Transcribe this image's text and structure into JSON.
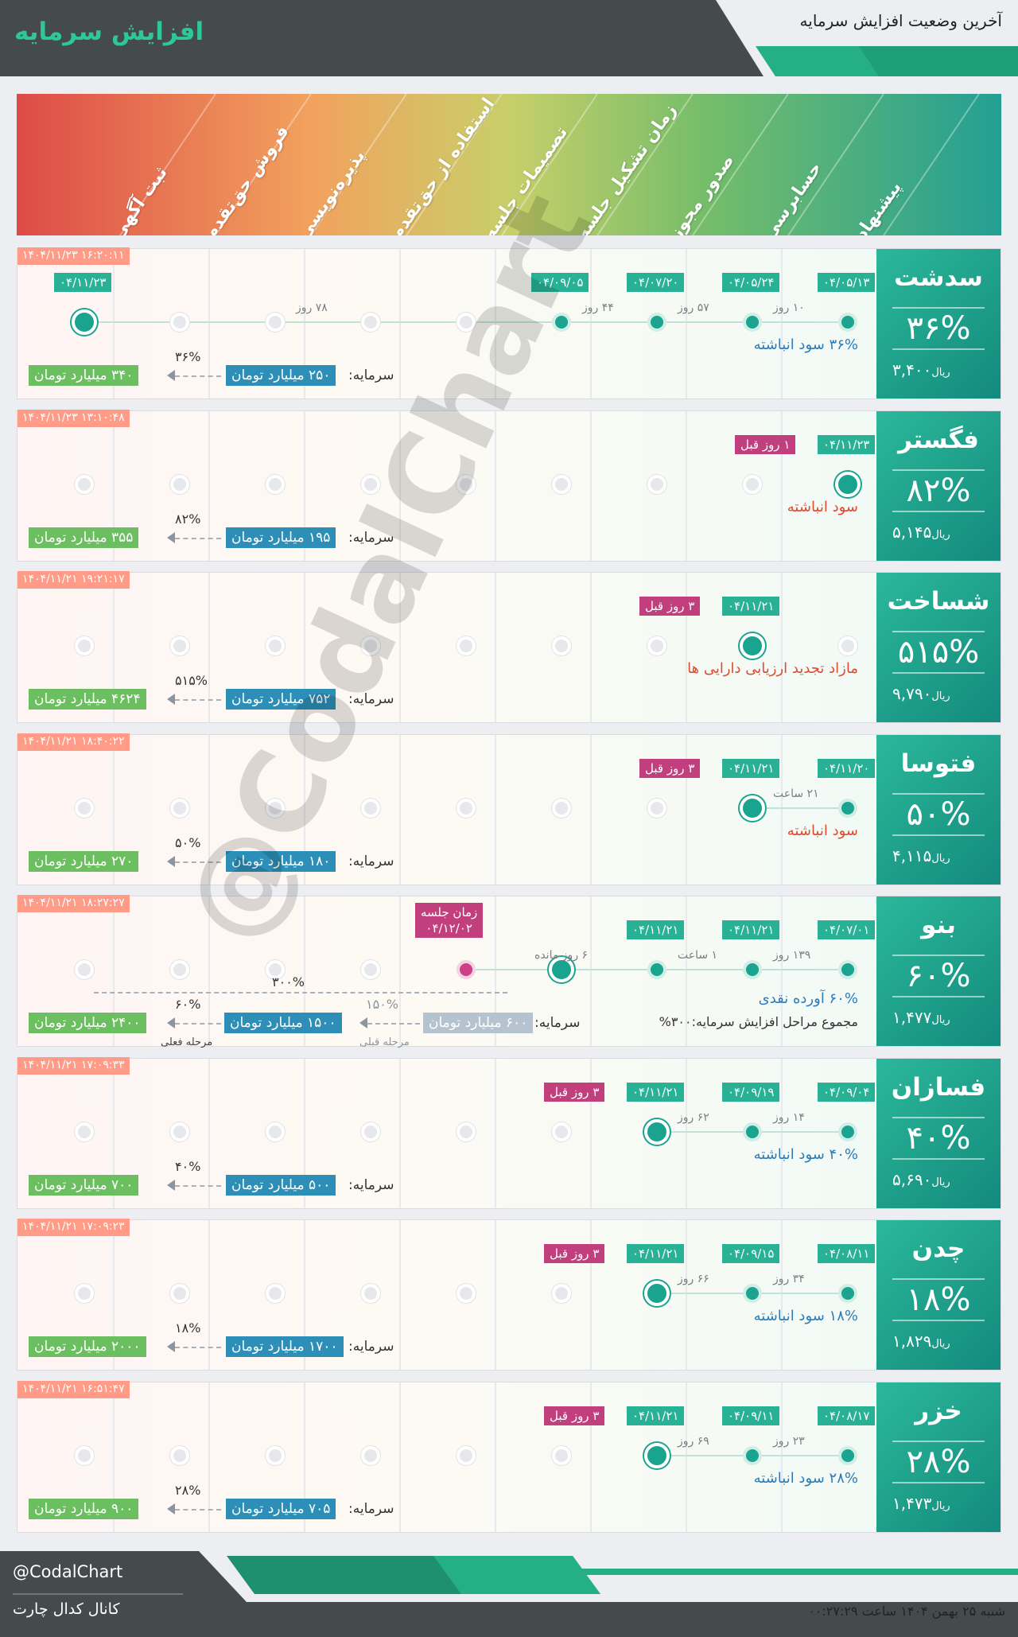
{
  "header": {
    "title": "افزایش سرمایه",
    "subtitle": "آخرین وضعیت افزایش سرمایه"
  },
  "stages": [
    "پیشنهاد",
    "حسابرسی",
    "صدور مجوز",
    "زمان تشکیل جلسه",
    "تصمیمات جلسه",
    "استفاده از حق‌تقدم",
    "پذیره‌نویسی",
    "فروش حق‌تقدم",
    "ثبت آگهی"
  ],
  "capital_label": "سرمایه:",
  "rial": "ریال",
  "watermark": "@CodalChart",
  "cards": [
    {
      "symbol": "سدشت",
      "percent": "۳۶%",
      "price": "۳,۴۰۰",
      "timestamp": "۱۴۰۴/۱۱/۲۳ ۱۶:۲۰:۱۱",
      "desc": "۳۶% سود انباشته",
      "from": "۲۵۰ میلیارد تومان",
      "to": "۳۴۰ میلیارد تومان",
      "ratio": "۳۶%",
      "dates": [
        "۰۴/۰۵/۱۳",
        "۰۴/۰۵/۲۴",
        "۰۴/۰۷/۲۰",
        "۰۴/۰۹/۰۵",
        "۰۴/۱۱/۲۳"
      ],
      "gaps": [
        "۱۰ روز",
        "۵۷ روز",
        "۴۴ روز",
        "۷۸ روز"
      ]
    },
    {
      "symbol": "فگستر",
      "percent": "۸۲%",
      "price": "۵,۱۴۵",
      "timestamp": "۱۴۰۴/۱۱/۲۳ ۱۳:۱۰:۴۸",
      "desc": "سود انباشته",
      "from": "۱۹۵ میلیارد تومان",
      "to": "۳۵۵ میلیارد تومان",
      "ratio": "۸۲%",
      "dates": [
        "۰۴/۱۱/۲۳"
      ],
      "ago": "۱ روز قبل"
    },
    {
      "symbol": "شساخت",
      "percent": "۵۱۵%",
      "price": "۹,۷۹۰",
      "timestamp": "۱۴۰۴/۱۱/۲۱ ۱۹:۲۱:۱۷",
      "desc": "مازاد تجدید ارزیابی دارایی ها",
      "from": "۷۵۲ میلیارد تومان",
      "to": "۴۶۲۴ میلیارد تومان",
      "ratio": "۵۱۵%",
      "dates": [
        "۰۴/۱۱/۲۱"
      ],
      "ago": "۳ روز قبل"
    },
    {
      "symbol": "فتوسا",
      "percent": "۵۰%",
      "price": "۴,۱۱۵",
      "timestamp": "۱۴۰۴/۱۱/۲۱ ۱۸:۴۰:۲۲",
      "desc": "سود انباشته",
      "from": "۱۸۰ میلیارد تومان",
      "to": "۲۷۰ میلیارد تومان",
      "ratio": "۵۰%",
      "dates": [
        "۰۴/۱۱/۲۰",
        "۰۴/۱۱/۲۱"
      ],
      "gaps": [
        "۲۱ ساعت"
      ],
      "ago": "۳ روز قبل"
    },
    {
      "symbol": "بنو",
      "percent": "۶۰%",
      "price": "۱,۴۷۷",
      "timestamp": "۱۴۰۴/۱۱/۲۱ ۱۸:۲۷:۲۷",
      "desc": "۶۰% آورده نقدی",
      "desc2": "مجموع مراحل افزایش سرمایه:۳۰۰%",
      "from_prev": "۶۰۰ میلیارد تومان",
      "from": "۱۵۰۰ میلیارد تومان",
      "to": "۲۴۰۰ میلیارد تومان",
      "ratio_prev": "۱۵۰%",
      "ratio": "۶۰%",
      "ratio_total": "۳۰۰%",
      "prev_stage": "مرحله قبلی",
      "cur_stage": "مرحله فعلی",
      "dates": [
        "۰۴/۰۷/۰۱",
        "۰۴/۱۱/۲۱",
        "۰۴/۱۱/۲۱"
      ],
      "gaps": [
        "۱۳۹ روز",
        "۱ ساعت",
        "۶ روز مانده"
      ],
      "meeting_label": "زمان جلسه",
      "meeting_date": "۰۴/۱۲/۰۲"
    },
    {
      "symbol": "فسازان",
      "percent": "۴۰%",
      "price": "۵,۶۹۰",
      "timestamp": "۱۴۰۴/۱۱/۲۱ ۱۷:۰۹:۳۳",
      "desc": "۴۰% سود انباشته",
      "from": "۵۰۰ میلیارد تومان",
      "to": "۷۰۰ میلیارد تومان",
      "ratio": "۴۰%",
      "dates": [
        "۰۴/۰۹/۰۴",
        "۰۴/۰۹/۱۹",
        "۰۴/۱۱/۲۱"
      ],
      "gaps": [
        "۱۴ روز",
        "۶۲ روز"
      ],
      "ago": "۳ روز قبل"
    },
    {
      "symbol": "چدن",
      "percent": "۱۸%",
      "price": "۱,۸۲۹",
      "timestamp": "۱۴۰۴/۱۱/۲۱ ۱۷:۰۹:۲۳",
      "desc": "۱۸% سود انباشته",
      "from": "۱۷۰۰ میلیارد تومان",
      "to": "۲۰۰۰ میلیارد تومان",
      "ratio": "۱۸%",
      "dates": [
        "۰۴/۰۸/۱۱",
        "۰۴/۰۹/۱۵",
        "۰۴/۱۱/۲۱"
      ],
      "gaps": [
        "۳۴ روز",
        "۶۶ روز"
      ],
      "ago": "۳ روز قبل"
    },
    {
      "symbol": "خزر",
      "percent": "۲۸%",
      "price": "۱,۴۷۳",
      "timestamp": "۱۴۰۴/۱۱/۲۱ ۱۶:۵۱:۴۷",
      "desc": "۲۸% سود انباشته",
      "from": "۷۰۵ میلیارد تومان",
      "to": "۹۰۰ میلیارد تومان",
      "ratio": "۲۸%",
      "dates": [
        "۰۴/۰۸/۱۷",
        "۰۴/۰۹/۱۱",
        "۰۴/۱۱/۲۱"
      ],
      "gaps": [
        "۲۳ روز",
        "۶۹ روز"
      ],
      "ago": "۳ روز قبل"
    }
  ],
  "footer": {
    "handle": "@CodalChart",
    "channel": "کانال کدال چارت",
    "datetime": "شنبه ۲۵ بهمن ۱۴۰۴ ساعت ۰۰:۲۷:۲۹"
  }
}
